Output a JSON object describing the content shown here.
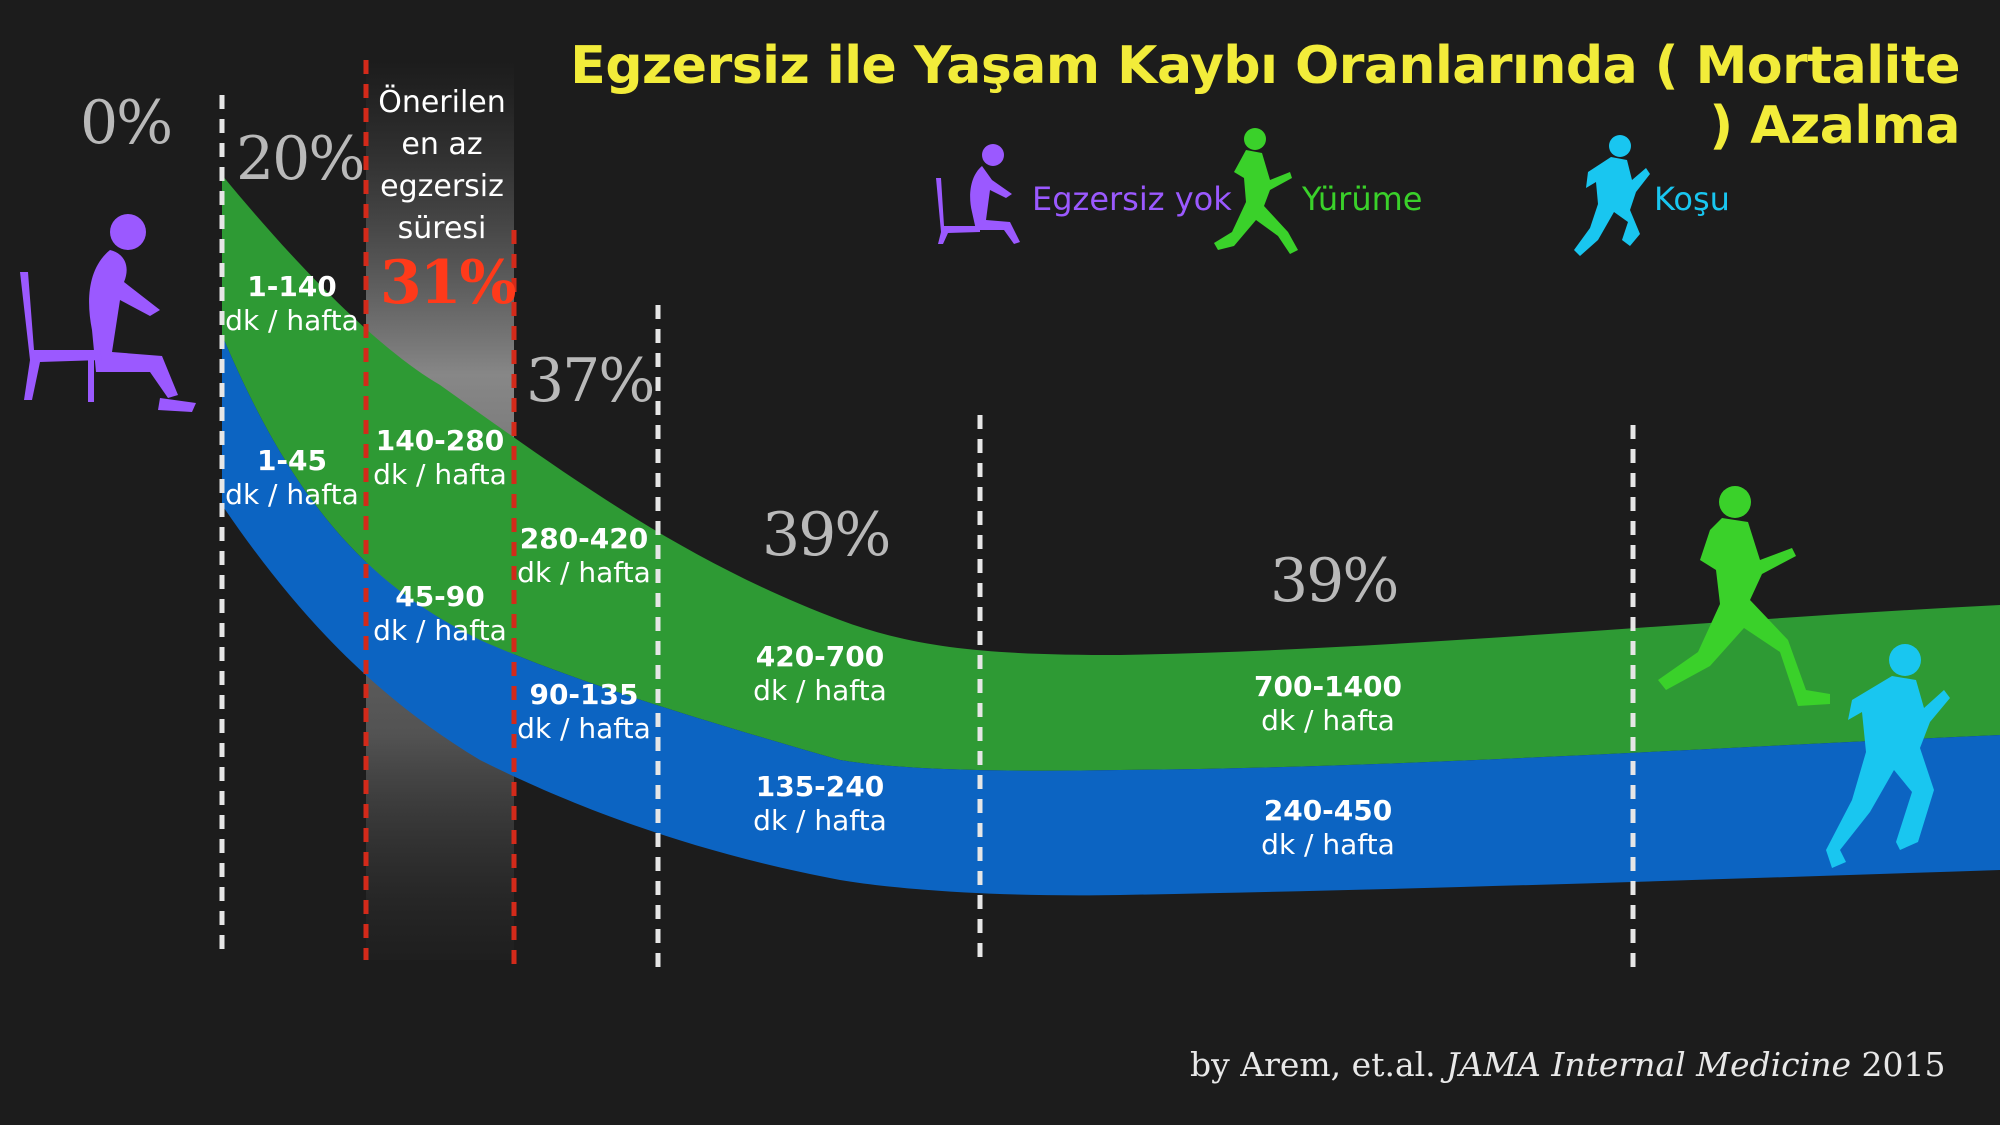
{
  "title": "Egzersiz ile Yaşam Kaybı Oranlarında ( Mortalite ) Azalma",
  "recommended_label": [
    "Önerilen",
    "en az",
    "egzersiz",
    "süresi"
  ],
  "legend": [
    {
      "label": "Egzersiz yok",
      "color": "#9b59ff",
      "icon": "sitting-person-icon"
    },
    {
      "label": "Yürüme",
      "color": "#3ad12a",
      "icon": "walking-person-icon"
    },
    {
      "label": "Koşu",
      "color": "#19c6f0",
      "icon": "running-person-icon"
    }
  ],
  "credit": {
    "prefix": "by Arem, et.al. ",
    "journal": "JAMA Internal Medicine",
    "year": " 2015"
  },
  "colors": {
    "walking_band": "#2e9a34",
    "running_band": "#0c64c2",
    "divider": "#e6e6e6",
    "recommended_divider": "#d32a1a",
    "background": "#1c1c1c"
  },
  "chart_data": {
    "type": "area",
    "series": [
      {
        "name": "Yürüme",
        "color": "#2e9a34"
      },
      {
        "name": "Koşu",
        "color": "#0c64c2"
      }
    ],
    "mortality_reduction": [
      "0%",
      "20%",
      "31%",
      "37%",
      "39%",
      "39%"
    ],
    "walking_ranges": [
      {
        "range": "1-140",
        "unit": "dk / hafta"
      },
      {
        "range": "140-280",
        "unit": "dk / hafta"
      },
      {
        "range": "280-420",
        "unit": "dk / hafta"
      },
      {
        "range": "420-700",
        "unit": "dk / hafta"
      },
      {
        "range": "700-1400",
        "unit": "dk / hafta"
      }
    ],
    "running_ranges": [
      {
        "range": "1-45",
        "unit": "dk / hafta"
      },
      {
        "range": "45-90",
        "unit": "dk / hafta"
      },
      {
        "range": "90-135",
        "unit": "dk / hafta"
      },
      {
        "range": "135-240",
        "unit": "dk / hafta"
      },
      {
        "range": "240-450",
        "unit": "dk / hafta"
      }
    ]
  }
}
